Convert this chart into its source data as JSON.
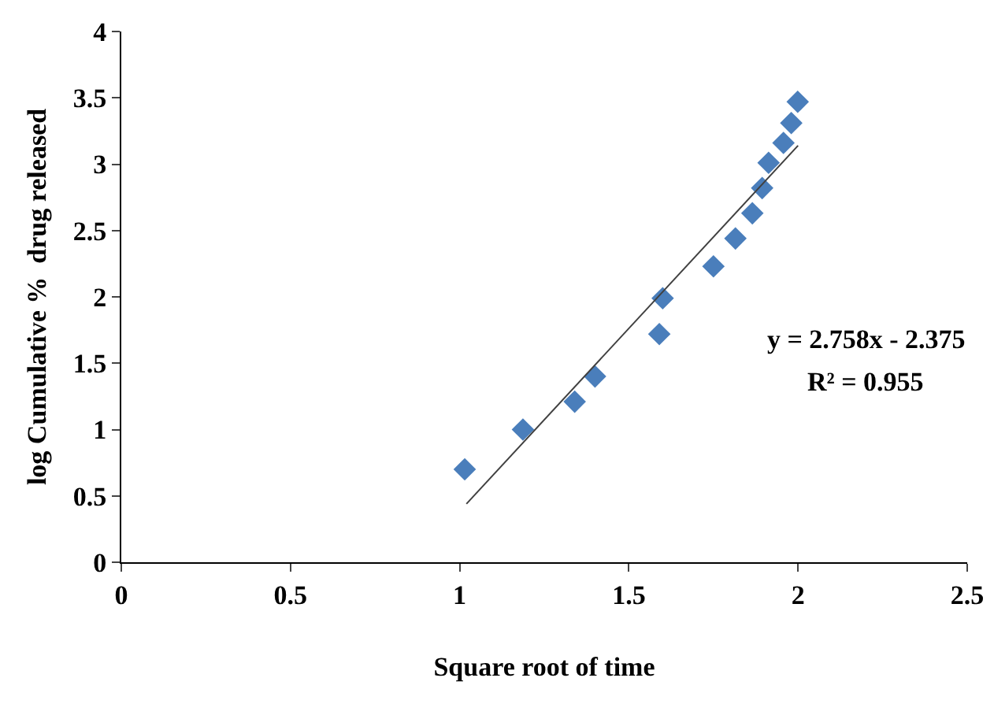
{
  "chart_data": {
    "type": "scatter",
    "xlabel": "Square root of time",
    "ylabel": "log Cumulative %  drug released",
    "xlim": [
      0,
      2.5
    ],
    "xticks": [
      0,
      0.5,
      1,
      1.5,
      2,
      2.5
    ],
    "ylim": [
      0,
      4
    ],
    "yticks": [
      0,
      0.5,
      1,
      1.5,
      2,
      2.5,
      3,
      3.5,
      4
    ],
    "grid": false,
    "legend": false,
    "marker": "diamond",
    "series": [
      {
        "color": "#4a7ebb",
        "x": [
          1.015,
          1.187,
          1.34,
          1.4,
          1.59,
          1.6,
          1.75,
          1.815,
          1.865,
          1.894,
          1.913,
          1.957,
          1.98,
          1.999
        ],
        "values": [
          0.7,
          1.0,
          1.21,
          1.4,
          1.72,
          1.99,
          2.23,
          2.44,
          2.63,
          2.82,
          3.01,
          3.16,
          3.31,
          3.47
        ]
      },
      {
        "type": "line",
        "marker": "none",
        "color": "#404040",
        "x": [
          1.02,
          2.0
        ],
        "values": [
          0.44,
          3.14
        ]
      }
    ],
    "annotations": [
      "y = 2.758x - 2.375",
      "R² = 0.955"
    ]
  }
}
